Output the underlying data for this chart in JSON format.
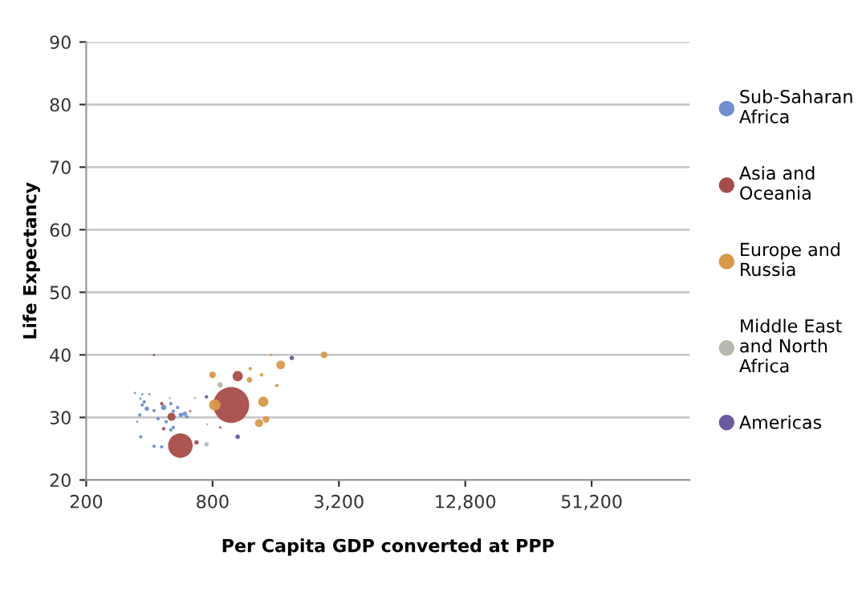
{
  "chart_data": {
    "type": "bubble",
    "xlabel": "Per Capita GDP converted at PPP",
    "ylabel": "Life Expectancy",
    "log": "x",
    "grid": "y",
    "legend": "right",
    "marker": "circle",
    "xlim": [
      200,
      150000
    ],
    "xticks": [
      200,
      800,
      {
        "value": 3200,
        "label": "3,200"
      },
      {
        "value": 12800,
        "label": "12,800"
      },
      {
        "value": 51200,
        "label": "51,200"
      }
    ],
    "ylim": [
      20,
      90
    ],
    "yticks": [
      20,
      30,
      40,
      50,
      60,
      70,
      80,
      90
    ],
    "series": [
      {
        "name": "Sub-Saharan Africa",
        "color": "#6f8fd0",
        "x": [
          364,
          421,
          458,
          341,
          370,
          400,
          389,
          360,
          370,
          421,
          468,
          481,
          520,
          565,
          603,
          545,
          440,
          506,
          362,
          350,
          378,
          520,
          590,
          506
        ],
        "values": [
          26.9,
          25.4,
          25.3,
          33.9,
          33.7,
          33.7,
          31.4,
          30.4,
          32.0,
          31.1,
          31.6,
          29.3,
          28.4,
          30.4,
          30.1,
          31.6,
          29.8,
          32.2,
          33.0,
          29.3,
          32.5,
          31.0,
          30.6,
          28.0
        ],
        "sizes": [
          0.009,
          0.009,
          0.009,
          0.004,
          0.004,
          0.004,
          0.016,
          0.009,
          0.009,
          0.009,
          0.024,
          0.009,
          0.009,
          0.016,
          0.009,
          0.009,
          0.009,
          0.009,
          0.004,
          0.004,
          0.009,
          0.009,
          0.016,
          0.009
        ]
      },
      {
        "name": "Asia and Oceania",
        "color": "#a64d4a",
        "x": [
          982,
          562,
          1054,
          510,
          458,
          421,
          671,
          468,
          870,
          1080,
          626
        ],
        "values": [
          32.0,
          25.5,
          36.6,
          30.1,
          32.2,
          40.0,
          26.0,
          28.2,
          28.4,
          32.3,
          31.0
        ],
        "sizes": [
          1,
          0.47,
          0.08,
          0.05,
          0.009,
          0.004,
          0.016,
          0.009,
          0.004,
          0.004,
          0.004
        ]
      },
      {
        "name": "Europe and Russia",
        "color": "#d9994a",
        "x": [
          820,
          1396,
          1690,
          2720,
          1332,
          1438,
          800,
          1200,
          1620,
          1210,
          1520,
          1370
        ],
        "values": [
          32.0,
          32.5,
          38.4,
          40.0,
          29.1,
          29.7,
          36.8,
          36.0,
          35.1,
          37.8,
          40.0,
          36.8
        ],
        "sizes": [
          0.1,
          0.08,
          0.06,
          0.035,
          0.05,
          0.035,
          0.035,
          0.024,
          0.009,
          0.009,
          0.004,
          0.009
        ]
      },
      {
        "name": "Middle East and North Africa",
        "color": "#b8b8b0",
        "x": [
          870,
          748,
          660,
          755,
          500
        ],
        "values": [
          35.2,
          25.7,
          33.1,
          28.9,
          33.1
        ],
        "sizes": [
          0.024,
          0.016,
          0.004,
          0.004,
          0.004
        ]
      },
      {
        "name": "Americas",
        "color": "#6a5a9e",
        "x": [
          1908,
          1054,
          748
        ],
        "values": [
          39.5,
          26.9,
          33.3
        ],
        "sizes": [
          0.016,
          0.016,
          0.009
        ]
      }
    ]
  }
}
